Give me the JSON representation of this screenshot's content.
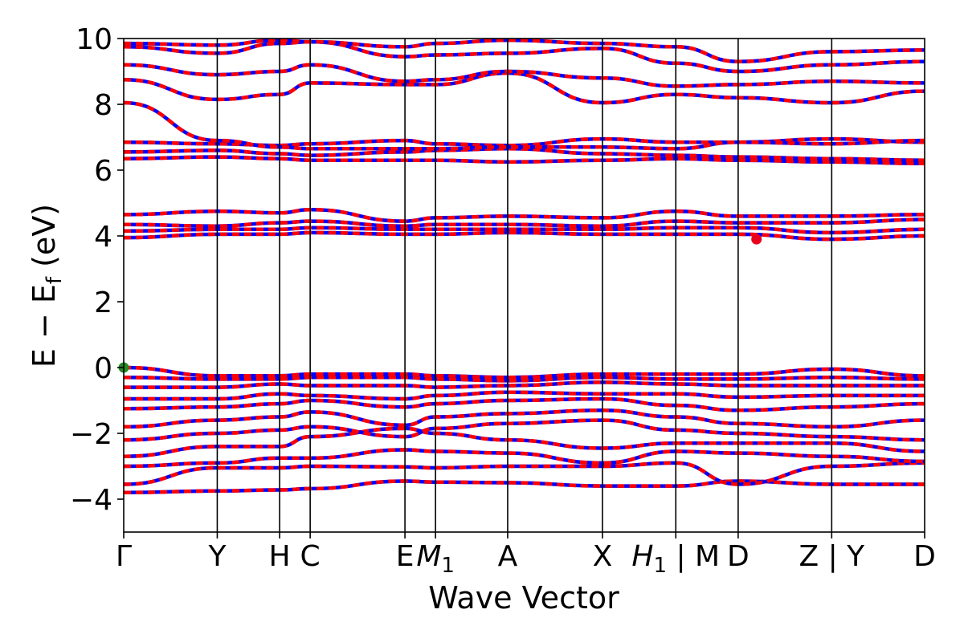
{
  "chart_data": {
    "type": "line",
    "xlabel": "Wave Vector",
    "ylabel": "E − E",
    "ylabel_sub": "f",
    "ylabel_unit": " (eV)",
    "ylim": [
      -5,
      10
    ],
    "xlim": [
      0,
      12.25
    ],
    "y_ticks": [
      -4,
      -2,
      0,
      2,
      4,
      6,
      8,
      10
    ],
    "k_points": [
      {
        "pos": 0,
        "label": "Γ"
      },
      {
        "pos": 1.53,
        "label": "Y"
      },
      {
        "pos": 2.55,
        "label": "H"
      },
      {
        "pos": 3.05,
        "label": "C"
      },
      {
        "pos": 4.6,
        "label": "E"
      },
      {
        "pos": 5.1,
        "label": "M",
        "sub": "1"
      },
      {
        "pos": 6.28,
        "label": "A"
      },
      {
        "pos": 7.83,
        "label": "X"
      },
      {
        "pos": 9.03,
        "label": "H",
        "sub": "1",
        "suffix": " | M"
      },
      {
        "pos": 10.05,
        "label": "D"
      },
      {
        "pos": 11.58,
        "label": "Z | Y"
      },
      {
        "pos": 13.1,
        "label": "D"
      }
    ],
    "bands": [
      {
        "energies": [
          -3.8,
          -3.75,
          -3.72,
          -3.68,
          -3.45,
          -3.48,
          -3.5,
          -3.6,
          -3.6,
          -3.45,
          -3.55,
          -3.55,
          -3.75,
          -3.6
        ]
      },
      {
        "energies": [
          -3.55,
          -3.05,
          -3.05,
          -3.0,
          -3.02,
          -3.05,
          -3.0,
          -3.0,
          -2.9,
          -3.55,
          -3.0,
          -2.9,
          -3.6,
          -3.1
        ]
      },
      {
        "energies": [
          -3.0,
          -2.9,
          -2.75,
          -2.75,
          -2.5,
          -2.55,
          -2.6,
          -2.9,
          -2.55,
          -2.6,
          -2.7,
          -2.85,
          -3.05,
          -2.35
        ]
      },
      {
        "energies": [
          -2.7,
          -2.4,
          -2.4,
          -2.1,
          -1.85,
          -2.0,
          -2.2,
          -2.45,
          -2.3,
          -2.3,
          -2.3,
          -2.55,
          -2.4,
          -2.1
        ]
      },
      {
        "energies": [
          -2.2,
          -2.0,
          -1.9,
          -1.8,
          -2.1,
          -1.85,
          -1.7,
          -1.6,
          -1.9,
          -2.0,
          -2.1,
          -2.2,
          -2.1,
          -1.8
        ]
      },
      {
        "energies": [
          -1.8,
          -1.6,
          -1.5,
          -1.35,
          -1.75,
          -1.5,
          -1.4,
          -1.3,
          -1.5,
          -1.7,
          -1.8,
          -1.6,
          -1.8,
          -1.6
        ]
      },
      {
        "energies": [
          -1.25,
          -1.2,
          -1.1,
          -1.0,
          -1.2,
          -1.1,
          -1.0,
          -0.95,
          -1.15,
          -1.3,
          -1.2,
          -1.1,
          -1.4,
          -1.25
        ]
      },
      {
        "energies": [
          -0.95,
          -0.95,
          -0.8,
          -0.85,
          -0.95,
          -0.85,
          -0.75,
          -0.8,
          -0.8,
          -0.9,
          -0.85,
          -0.85,
          -1.0,
          -0.9
        ]
      },
      {
        "energies": [
          -0.6,
          -0.6,
          -0.5,
          -0.55,
          -0.55,
          -0.6,
          -0.55,
          -0.45,
          -0.5,
          -0.55,
          -0.55,
          -0.55,
          -0.7,
          -0.6
        ]
      },
      {
        "energies": [
          -0.3,
          -0.35,
          -0.35,
          -0.3,
          -0.3,
          -0.35,
          -0.4,
          -0.3,
          -0.35,
          -0.35,
          -0.3,
          -0.35,
          -0.45,
          -0.4
        ]
      },
      {
        "energies": [
          0.0,
          -0.25,
          -0.25,
          -0.2,
          -0.2,
          -0.25,
          -0.3,
          -0.2,
          -0.2,
          -0.2,
          -0.05,
          -0.25,
          -0.25,
          -0.05
        ]
      },
      {
        "energies": [
          3.95,
          4.05,
          4.05,
          4.1,
          4.05,
          4.05,
          4.1,
          4.05,
          4.05,
          4.05,
          3.9,
          4.0,
          4.0,
          3.95
        ]
      },
      {
        "energies": [
          4.15,
          4.2,
          4.2,
          4.25,
          4.2,
          4.2,
          4.2,
          4.2,
          4.25,
          4.25,
          4.1,
          4.2,
          4.2,
          4.15
        ]
      },
      {
        "energies": [
          4.35,
          4.3,
          4.4,
          4.45,
          4.3,
          4.35,
          4.35,
          4.3,
          4.45,
          4.4,
          4.4,
          4.5,
          4.35,
          4.4
        ]
      },
      {
        "energies": [
          4.65,
          4.75,
          4.7,
          4.8,
          4.45,
          4.55,
          4.6,
          4.55,
          4.75,
          4.6,
          4.6,
          4.65,
          4.75,
          4.6
        ]
      },
      {
        "energies": [
          6.35,
          6.4,
          6.35,
          6.3,
          6.3,
          6.3,
          6.25,
          6.3,
          6.35,
          6.3,
          6.25,
          6.2,
          6.3,
          6.2
        ]
      },
      {
        "energies": [
          6.55,
          6.6,
          6.5,
          6.45,
          6.55,
          6.6,
          6.65,
          6.5,
          6.45,
          6.4,
          6.35,
          6.3,
          6.5,
          6.6
        ]
      },
      {
        "energies": [
          6.85,
          6.8,
          6.75,
          6.8,
          6.9,
          6.8,
          6.75,
          6.95,
          6.85,
          6.85,
          6.95,
          6.85,
          6.8,
          6.95
        ]
      },
      {
        "energies": [
          8.05,
          6.9,
          6.7,
          6.65,
          6.65,
          6.65,
          6.7,
          6.7,
          6.65,
          6.85,
          6.8,
          6.9,
          6.85,
          6.8
        ]
      },
      {
        "energies": [
          8.75,
          8.15,
          8.3,
          8.65,
          8.6,
          8.6,
          8.95,
          8.05,
          8.3,
          8.2,
          8.05,
          8.4,
          8.05,
          8.0
        ]
      },
      {
        "energies": [
          9.2,
          8.9,
          9.0,
          9.2,
          8.7,
          8.75,
          9.0,
          8.8,
          8.55,
          8.6,
          8.7,
          8.65,
          8.9,
          8.7
        ]
      },
      {
        "energies": [
          9.75,
          9.55,
          9.85,
          9.9,
          9.45,
          9.5,
          9.55,
          9.7,
          9.25,
          9.0,
          9.2,
          9.3,
          9.6,
          9.25
        ]
      },
      {
        "energies": [
          9.85,
          9.8,
          9.95,
          9.9,
          9.75,
          9.85,
          9.95,
          9.85,
          9.75,
          9.3,
          9.6,
          9.65,
          9.85,
          9.95
        ]
      }
    ],
    "markers": [
      {
        "name": "vbm",
        "x": 0,
        "y": 0,
        "color": "#228b22"
      },
      {
        "name": "cbm",
        "x": 10.35,
        "y": 3.9,
        "color": "#e8001c"
      }
    ],
    "colors": {
      "spin_up": "#ff0000",
      "spin_down": "#0000ff",
      "kline": "#000000"
    }
  }
}
